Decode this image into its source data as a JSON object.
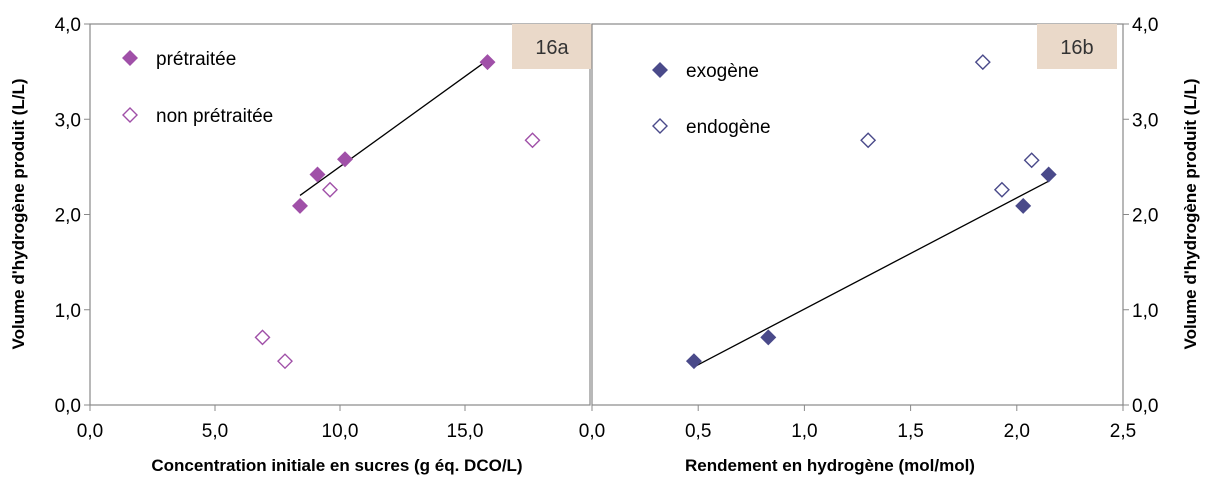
{
  "chart_data": [
    {
      "type": "scatter",
      "panel_label": "16a",
      "xlabel": "Concentration initiale en sucres (g éq. DCO/L)",
      "ylabel": "Volume d'hydrogène produit (L/L)",
      "xlim": [
        0,
        20
      ],
      "ylim": [
        0,
        4
      ],
      "x_ticks": [
        "0,0",
        "5,0",
        "10,0",
        "15,0"
      ],
      "y_ticks": [
        "0,0",
        "1,0",
        "2,0",
        "3,0",
        "4,0"
      ],
      "legend_position": "top-left",
      "series": [
        {
          "name": "prétraitée",
          "marker": "filled-diamond",
          "color": "#a050a8",
          "points": [
            [
              8.4,
              2.09
            ],
            [
              9.1,
              2.42
            ],
            [
              10.2,
              2.58
            ],
            [
              15.9,
              3.6
            ]
          ]
        },
        {
          "name": "non prétraitée",
          "marker": "hollow-diamond",
          "color": "#a050a8",
          "points": [
            [
              6.9,
              0.71
            ],
            [
              7.8,
              0.46
            ],
            [
              9.6,
              2.26
            ],
            [
              17.7,
              2.78
            ]
          ]
        }
      ],
      "trendline": {
        "points": [
          [
            8.4,
            2.2
          ],
          [
            15.9,
            3.62
          ]
        ],
        "color": "#000000"
      }
    },
    {
      "type": "scatter",
      "panel_label": "16b",
      "xlabel": "Rendement en hydrogène (mol/mol)",
      "ylabel": "Volume d'hydrogène produit (L/L)",
      "xlim": [
        0,
        2.5
      ],
      "ylim": [
        0,
        4
      ],
      "x_ticks": [
        "0,0",
        "0,5",
        "1,0",
        "1,5",
        "2,0",
        "2,5"
      ],
      "y_ticks": [
        "0,0",
        "1,0",
        "2,0",
        "3,0",
        "4,0"
      ],
      "legend_position": "top-left",
      "series": [
        {
          "name": "exogène",
          "marker": "filled-diamond",
          "color": "#4a4a8a",
          "points": [
            [
              0.48,
              0.46
            ],
            [
              0.83,
              0.71
            ],
            [
              2.03,
              2.09
            ],
            [
              2.15,
              2.42
            ]
          ]
        },
        {
          "name": "endogène",
          "marker": "hollow-diamond",
          "color": "#4a4a8a",
          "points": [
            [
              1.3,
              2.78
            ],
            [
              1.84,
              3.6
            ],
            [
              1.93,
              2.26
            ],
            [
              2.07,
              2.57
            ]
          ]
        }
      ],
      "trendline": {
        "points": [
          [
            0.48,
            0.4
          ],
          [
            2.15,
            2.35
          ]
        ],
        "color": "#000000"
      }
    }
  ]
}
